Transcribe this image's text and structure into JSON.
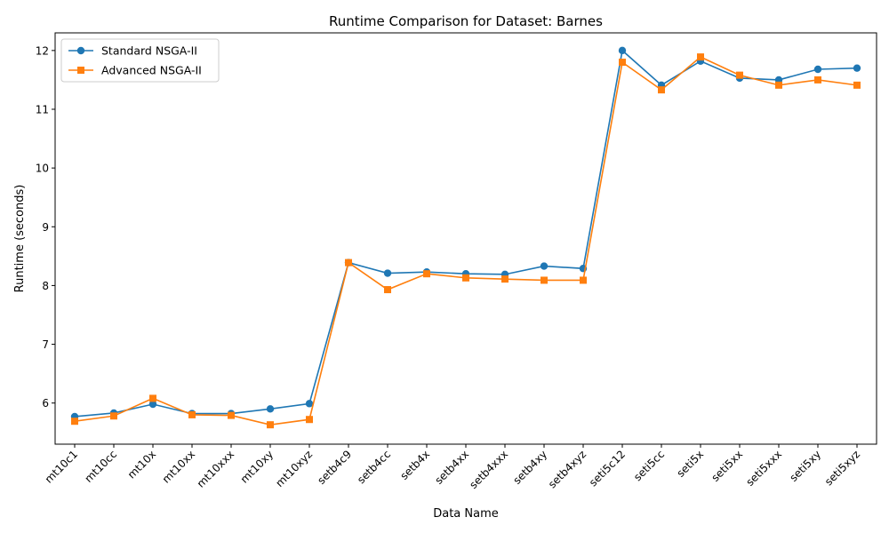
{
  "chart_data": {
    "type": "line",
    "title": "Runtime Comparison for Dataset: Barnes",
    "xlabel": "Data Name",
    "ylabel": "Runtime (seconds)",
    "categories": [
      "mt10c1",
      "mt10cc",
      "mt10x",
      "mt10xx",
      "mt10xxx",
      "mt10xy",
      "mt10xyz",
      "setb4c9",
      "setb4cc",
      "setb4x",
      "setb4xx",
      "setb4xxx",
      "setb4xy",
      "setb4xyz",
      "seti5c12",
      "seti5cc",
      "seti5x",
      "seti5xx",
      "seti5xxx",
      "seti5xy",
      "seti5xyz"
    ],
    "ylim": [
      5.3,
      12.3
    ],
    "yticks": [
      6,
      7,
      8,
      9,
      10,
      11,
      12
    ],
    "grid": false,
    "legend_position": "top-left",
    "series": [
      {
        "name": "Standard NSGA-II",
        "color": "#1f77b4",
        "marker": "circle",
        "values": [
          5.77,
          5.83,
          5.98,
          5.82,
          5.82,
          5.9,
          5.99,
          8.39,
          8.21,
          8.23,
          8.2,
          8.19,
          8.33,
          8.29,
          12.0,
          11.41,
          11.82,
          11.53,
          11.5,
          11.68,
          11.7
        ]
      },
      {
        "name": "Advanced NSGA-II",
        "color": "#ff7f0e",
        "marker": "square",
        "values": [
          5.69,
          5.78,
          6.08,
          5.8,
          5.79,
          5.63,
          5.72,
          8.39,
          7.93,
          8.2,
          8.13,
          8.11,
          8.09,
          8.09,
          11.8,
          11.33,
          11.89,
          11.58,
          11.41,
          11.5,
          11.41
        ]
      }
    ]
  }
}
